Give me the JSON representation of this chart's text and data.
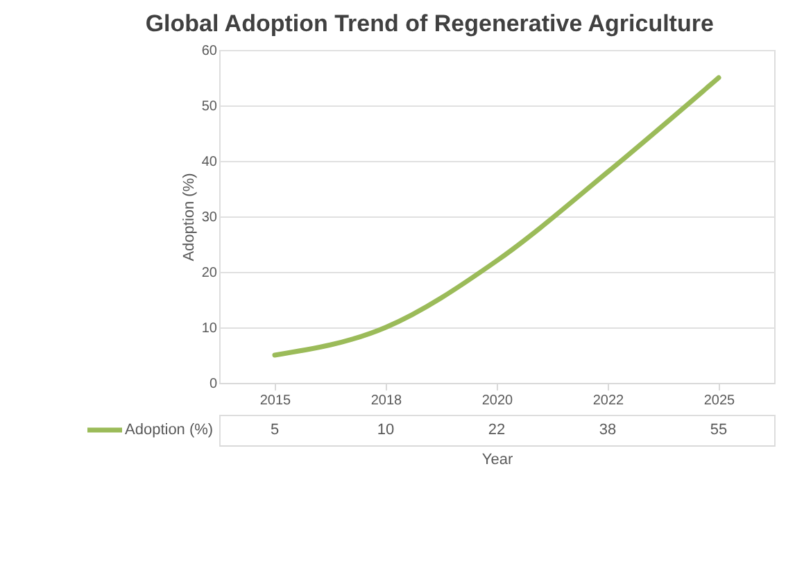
{
  "chart_data": {
    "type": "line",
    "title": "Global Adoption Trend of Regenerative Agriculture",
    "xlabel": "Year",
    "ylabel": "Adoption (%)",
    "categories": [
      "2015",
      "2018",
      "2020",
      "2022",
      "2025"
    ],
    "series": [
      {
        "name": "Adoption (%)",
        "color": "#9bbb59",
        "values": [
          5,
          10,
          22,
          38,
          55
        ]
      }
    ],
    "ylim": [
      0,
      60
    ],
    "yticks": [
      0,
      10,
      20,
      30,
      40,
      50,
      60
    ],
    "grid": "y",
    "legend": "bottom",
    "data_labels": true,
    "marker": "none",
    "line_style": "solid"
  }
}
